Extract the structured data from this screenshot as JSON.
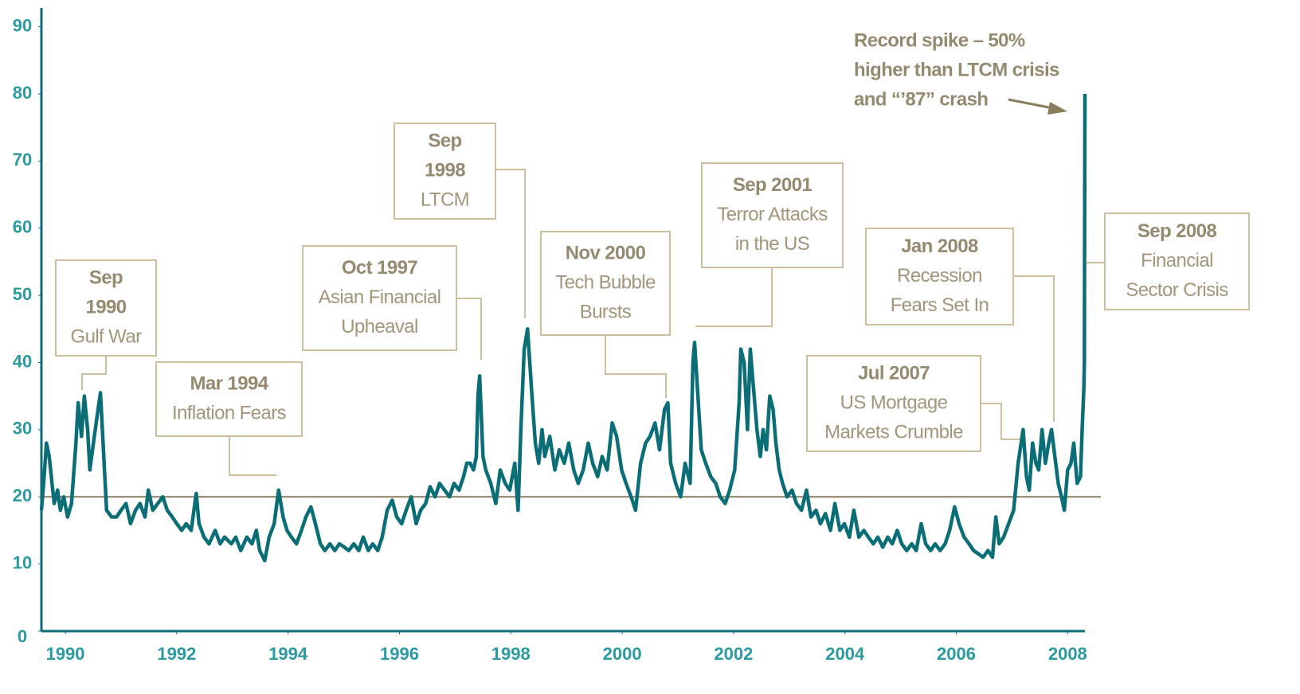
{
  "chart_data": {
    "type": "line",
    "xlim": [
      1989.57,
      2008.31
    ],
    "xticks": [
      1990,
      1992,
      1994,
      1996,
      1998,
      2000,
      2002,
      2004,
      2006,
      2008
    ],
    "ylim": [
      0,
      90
    ],
    "yticks": [
      0,
      10,
      20,
      30,
      40,
      50,
      60,
      70,
      80,
      90
    ],
    "hline": 20,
    "hline_color": "#8a7d5e",
    "axis_color": "#0b6e77",
    "series": [
      {
        "color": "#0b6e77",
        "x": [
          1989.57,
          1989.61,
          1989.66,
          1989.71,
          1989.76,
          1989.8,
          1989.86,
          1989.91,
          1989.97,
          1990.04,
          1990.11,
          1990.19,
          1990.23,
          1990.29,
          1990.34,
          1990.4,
          1990.44,
          1990.52,
          1990.57,
          1990.63,
          1990.69,
          1990.74,
          1990.83,
          1990.92,
          1991.0,
          1991.09,
          1991.17,
          1991.26,
          1991.34,
          1991.43,
          1991.49,
          1991.57,
          1991.66,
          1991.75,
          1991.83,
          1991.92,
          1992.0,
          1992.09,
          1992.17,
          1992.26,
          1992.35,
          1992.4,
          1992.49,
          1992.58,
          1992.69,
          1992.78,
          1992.86,
          1992.98,
          1993.06,
          1993.15,
          1993.26,
          1993.35,
          1993.43,
          1993.49,
          1993.58,
          1993.66,
          1993.75,
          1993.83,
          1993.91,
          1993.98,
          1994.06,
          1994.15,
          1994.24,
          1994.32,
          1994.41,
          1994.49,
          1994.58,
          1994.66,
          1994.75,
          1994.84,
          1994.92,
          1995.01,
          1995.09,
          1995.18,
          1995.27,
          1995.35,
          1995.44,
          1995.52,
          1995.61,
          1995.69,
          1995.78,
          1995.87,
          1995.95,
          1996.04,
          1996.12,
          1996.21,
          1996.3,
          1996.38,
          1996.47,
          1996.55,
          1996.64,
          1996.72,
          1996.81,
          1996.9,
          1996.98,
          1997.07,
          1997.15,
          1997.21,
          1997.27,
          1997.33,
          1997.38,
          1997.41,
          1997.44,
          1997.47,
          1997.5,
          1997.55,
          1997.64,
          1997.73,
          1997.81,
          1997.9,
          1997.98,
          1998.07,
          1998.13,
          1998.18,
          1998.24,
          1998.3,
          1998.34,
          1998.38,
          1998.44,
          1998.5,
          1998.56,
          1998.61,
          1998.7,
          1998.79,
          1998.87,
          1998.96,
          1999.04,
          1999.13,
          1999.21,
          1999.3,
          1999.39,
          1999.47,
          1999.56,
          1999.64,
          1999.73,
          1999.82,
          1999.9,
          1999.99,
          2000.07,
          2000.16,
          2000.24,
          2000.33,
          2000.42,
          2000.5,
          2000.59,
          2000.67,
          2000.76,
          2000.82,
          2000.87,
          2000.96,
          2001.05,
          2001.13,
          2001.22,
          2001.27,
          2001.3,
          2001.36,
          2001.42,
          2001.5,
          2001.59,
          2001.68,
          2001.76,
          2001.85,
          2001.93,
          2002.02,
          2002.1,
          2002.13,
          2002.19,
          2002.25,
          2002.3,
          2002.36,
          2002.42,
          2002.48,
          2002.53,
          2002.59,
          2002.65,
          2002.71,
          2002.76,
          2002.82,
          2002.88,
          2002.96,
          2003.05,
          2003.13,
          2003.22,
          2003.31,
          2003.39,
          2003.48,
          2003.56,
          2003.65,
          2003.74,
          2003.82,
          2003.91,
          2003.99,
          2004.08,
          2004.16,
          2004.25,
          2004.34,
          2004.42,
          2004.51,
          2004.59,
          2004.68,
          2004.77,
          2004.85,
          2004.94,
          2005.02,
          2005.11,
          2005.2,
          2005.28,
          2005.37,
          2005.45,
          2005.54,
          2005.62,
          2005.71,
          2005.8,
          2005.88,
          2005.97,
          2006.05,
          2006.14,
          2006.23,
          2006.31,
          2006.4,
          2006.48,
          2006.57,
          2006.65,
          2006.71,
          2006.77,
          2006.85,
          2006.94,
          2007.03,
          2007.11,
          2007.2,
          2007.26,
          2007.31,
          2007.37,
          2007.43,
          2007.48,
          2007.54,
          2007.6,
          2007.66,
          2007.71,
          2007.77,
          2007.83,
          2007.89,
          2007.94,
          2008.0,
          2008.06,
          2008.11,
          2008.17,
          2008.23,
          2008.26,
          2008.29,
          2008.3,
          2008.31
        ],
        "values": [
          18,
          22,
          28,
          26,
          22,
          19,
          21,
          18,
          20,
          17,
          19,
          28,
          34,
          29,
          35,
          30,
          24,
          29,
          32,
          35.5,
          26,
          18,
          17,
          17,
          18,
          19,
          16,
          18,
          19,
          17,
          21,
          18,
          19,
          20,
          18,
          17,
          16,
          15,
          16,
          15,
          20.5,
          16,
          14,
          13,
          15,
          13,
          14,
          13,
          14,
          12,
          14,
          13,
          15,
          12,
          10.5,
          14,
          16,
          21,
          17,
          15,
          14,
          13,
          15,
          17,
          18.5,
          16,
          13,
          12,
          13,
          12,
          13,
          12.5,
          12,
          13,
          12,
          14,
          12,
          13,
          12,
          14,
          18,
          19.5,
          17,
          16,
          18,
          20,
          16,
          18,
          19,
          21.5,
          20,
          22,
          21,
          20,
          22,
          21,
          23,
          25,
          25,
          24,
          26,
          35,
          38,
          32,
          26,
          24,
          22,
          19,
          24,
          22,
          21,
          25,
          18,
          30,
          42,
          45,
          40,
          35,
          28,
          25,
          30,
          26,
          29,
          24,
          27,
          25,
          28,
          24,
          22,
          24,
          28,
          25,
          23,
          26,
          24,
          31,
          29,
          24,
          22,
          20,
          18,
          25,
          28,
          29,
          31,
          27,
          33,
          34,
          25,
          22,
          20,
          25,
          22,
          40,
          43,
          35,
          27,
          25,
          23,
          22,
          20,
          19,
          21,
          24,
          34,
          42,
          40,
          30,
          42,
          36,
          30,
          26,
          30,
          27,
          35,
          33,
          28,
          24,
          22,
          20,
          21,
          19,
          18,
          21,
          17,
          18,
          16,
          17.5,
          15,
          19,
          15,
          16,
          14,
          18,
          14,
          15,
          14,
          13,
          14,
          12.5,
          14,
          13,
          15,
          13,
          12,
          13,
          12,
          16,
          13,
          12,
          13,
          12,
          13,
          15,
          18.5,
          16,
          14,
          13,
          12,
          11.5,
          11,
          12,
          11,
          17,
          13,
          14,
          16,
          18,
          25,
          30,
          23,
          21,
          28,
          25,
          24,
          30,
          25,
          28,
          30,
          26,
          22,
          20,
          18,
          24,
          25,
          28,
          22,
          23,
          30,
          36,
          40,
          80
        ]
      }
    ],
    "annotations": [
      {
        "title_lines": [
          "Sep",
          "1990"
        ],
        "text_lines": [
          "Gulf War"
        ]
      },
      {
        "title_lines": [
          "Mar 1994"
        ],
        "text_lines": [
          "Inflation Fears"
        ]
      },
      {
        "title_lines": [
          "Oct 1997"
        ],
        "text_lines": [
          "Asian Financial",
          "Upheaval"
        ]
      },
      {
        "title_lines": [
          "Sep",
          "1998"
        ],
        "text_lines": [
          "LTCM"
        ]
      },
      {
        "title_lines": [
          "Nov 2000"
        ],
        "text_lines": [
          "Tech Bubble",
          "Bursts"
        ]
      },
      {
        "title_lines": [
          "Sep 2001"
        ],
        "text_lines": [
          "Terror Attacks",
          "in the US"
        ]
      },
      {
        "title_lines": [
          "Jan 2008"
        ],
        "text_lines": [
          "Recession",
          "Fears Set In"
        ]
      },
      {
        "title_lines": [
          "Jul 2007"
        ],
        "text_lines": [
          "US Mortgage",
          "Markets Crumble"
        ]
      },
      {
        "title_lines": [
          "Sep 2008"
        ],
        "text_lines": [
          "Financial",
          "Sector Crisis"
        ]
      }
    ],
    "callout": {
      "lines": [
        "Record spike – 50%",
        "higher than LTCM crisis",
        "and “’87” crash"
      ]
    }
  }
}
